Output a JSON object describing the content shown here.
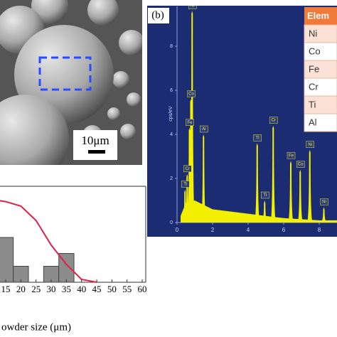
{
  "image_panel": {
    "scale_bar": "10μm"
  },
  "table": {
    "header": "Elem",
    "rows": [
      "Ni",
      "Co",
      "Fe",
      "Cr",
      "Ti",
      "Al"
    ]
  },
  "chart_data": [
    {
      "type": "spectrum",
      "label": "(b)",
      "ylabel": "cps/eV",
      "color": "#f2f000",
      "xlim": [
        0,
        9
      ],
      "ylim": [
        0,
        9.8
      ],
      "xticks": [
        0,
        2,
        4,
        6,
        8
      ],
      "yticks": [
        0,
        2,
        4,
        6,
        8
      ],
      "peaks": [
        {
          "name": "Ni",
          "energy": 0.85,
          "value": 9.6
        },
        {
          "name": "Co",
          "energy": 0.78,
          "value": 5.6
        },
        {
          "name": "Fe",
          "energy": 0.7,
          "value": 4.3
        },
        {
          "name": "Cr",
          "energy": 0.57,
          "value": 2.2
        },
        {
          "name": "Ti",
          "energy": 0.45,
          "value": 1.5
        },
        {
          "name": "Al",
          "energy": 1.49,
          "value": 4.0
        },
        {
          "name": "Ti",
          "energy": 4.51,
          "value": 3.6
        },
        {
          "name": "Ti",
          "energy": 4.93,
          "value": 1.0
        },
        {
          "name": "Cr",
          "energy": 5.41,
          "value": 4.4
        },
        {
          "name": "Fe",
          "energy": 6.4,
          "value": 2.8
        },
        {
          "name": "Co",
          "energy": 6.93,
          "value": 2.4
        },
        {
          "name": "Ni",
          "energy": 7.47,
          "value": 3.3
        },
        {
          "name": "Ni",
          "energy": 8.26,
          "value": 0.7
        }
      ],
      "background": {
        "x": [
          0.2,
          0.5,
          1,
          2,
          3,
          4,
          5,
          6,
          7,
          8,
          9
        ],
        "values": [
          0.3,
          0.9,
          1.0,
          0.6,
          0.5,
          0.4,
          0.3,
          0.2,
          0.15,
          0.1,
          0.1
        ]
      }
    },
    {
      "type": "histogram",
      "xlabel": "owder size (μm)",
      "color": "#8c8c8c",
      "bins": [
        12.5,
        17.5,
        22.5,
        27.5,
        32.5,
        37.5
      ],
      "counts": [
        14,
        5,
        0,
        5,
        9
      ],
      "xlim": [
        13,
        61
      ],
      "ylim": [
        0,
        30
      ],
      "xticks": [
        15,
        20,
        25,
        30,
        35,
        40,
        45,
        50,
        55,
        60
      ],
      "curve": {
        "color": "#e0204a",
        "x": [
          13,
          15,
          20,
          25,
          30,
          35,
          40,
          45
        ],
        "values": [
          25.5,
          25.2,
          23.8,
          19.3,
          11.6,
          5.6,
          0.9,
          0
        ]
      }
    }
  ]
}
